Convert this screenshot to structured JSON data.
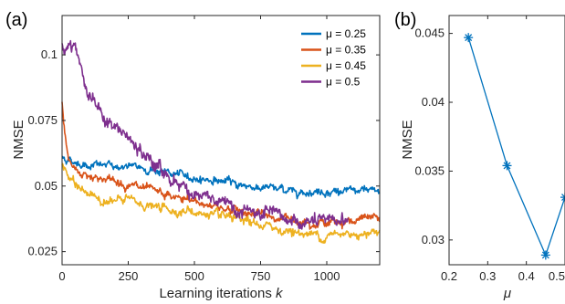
{
  "chart_data": [
    {
      "panel": "(a)",
      "type": "line",
      "xlabel": "Learning iterations k",
      "ylabel": "NMSE",
      "xlim": [
        0,
        1200
      ],
      "ylim": [
        0.02,
        0.115
      ],
      "xticks": [
        0,
        250,
        500,
        750,
        1000
      ],
      "yticks": [
        0.025,
        0.05,
        0.075,
        0.1
      ],
      "ytick_labels": [
        "0.025",
        "0.05",
        "0.075",
        "0.1"
      ],
      "legend_position": "top-right",
      "series": [
        {
          "name": "μ = 0.25",
          "color": "#0072BD",
          "noise": 0.0012,
          "x": [
            0,
            25,
            50,
            100,
            150,
            200,
            300,
            400,
            500,
            600,
            700,
            800,
            900,
            1000,
            1100,
            1200
          ],
          "y": [
            0.061,
            0.06,
            0.059,
            0.058,
            0.058,
            0.0575,
            0.057,
            0.055,
            0.053,
            0.052,
            0.05,
            0.049,
            0.048,
            0.048,
            0.048,
            0.048
          ]
        },
        {
          "name": "μ = 0.35",
          "color": "#D95319",
          "noise": 0.0013,
          "x": [
            0,
            10,
            25,
            50,
            100,
            150,
            200,
            300,
            400,
            500,
            600,
            700,
            800,
            900,
            1000,
            1100,
            1200
          ],
          "y": [
            0.081,
            0.07,
            0.06,
            0.056,
            0.054,
            0.053,
            0.052,
            0.049,
            0.046,
            0.044,
            0.042,
            0.04,
            0.038,
            0.037,
            0.036,
            0.037,
            0.038
          ]
        },
        {
          "name": "μ = 0.45",
          "color": "#EDB120",
          "noise": 0.0014,
          "x": [
            0,
            25,
            50,
            100,
            150,
            200,
            250,
            300,
            400,
            500,
            600,
            700,
            800,
            900,
            1000,
            1100,
            1200
          ],
          "y": [
            0.058,
            0.053,
            0.05,
            0.047,
            0.045,
            0.044,
            0.045,
            0.043,
            0.041,
            0.04,
            0.038,
            0.036,
            0.034,
            0.032,
            0.031,
            0.032,
            0.033
          ]
        },
        {
          "name": "μ = 0.5",
          "color": "#7E2F8E",
          "noise": 0.0022,
          "x": [
            0,
            25,
            50,
            70,
            100,
            150,
            200,
            250,
            300,
            400,
            500,
            600,
            700,
            800,
            900,
            1000,
            1080
          ],
          "y": [
            0.104,
            0.103,
            0.105,
            0.096,
            0.085,
            0.077,
            0.072,
            0.068,
            0.062,
            0.054,
            0.047,
            0.043,
            0.04,
            0.038,
            0.036,
            0.036,
            0.038
          ]
        }
      ]
    },
    {
      "panel": "(b)",
      "type": "line",
      "xlabel": "μ",
      "ylabel": "NMSE",
      "xlim": [
        0.2,
        0.5
      ],
      "ylim": [
        0.0282,
        0.0463
      ],
      "xticks": [
        0.2,
        0.3,
        0.4,
        0.5
      ],
      "xtick_labels": [
        "0.2",
        "0.3",
        "0.4",
        "0.5"
      ],
      "yticks": [
        0.03,
        0.035,
        0.04,
        0.045
      ],
      "ytick_labels": [
        "0.03",
        "0.035",
        "0.04",
        "0.045"
      ],
      "marker": "asterisk",
      "color": "#0072BD",
      "x": [
        0.25,
        0.35,
        0.45,
        0.5
      ],
      "y": [
        0.0447,
        0.0354,
        0.0289,
        0.0331
      ]
    }
  ]
}
